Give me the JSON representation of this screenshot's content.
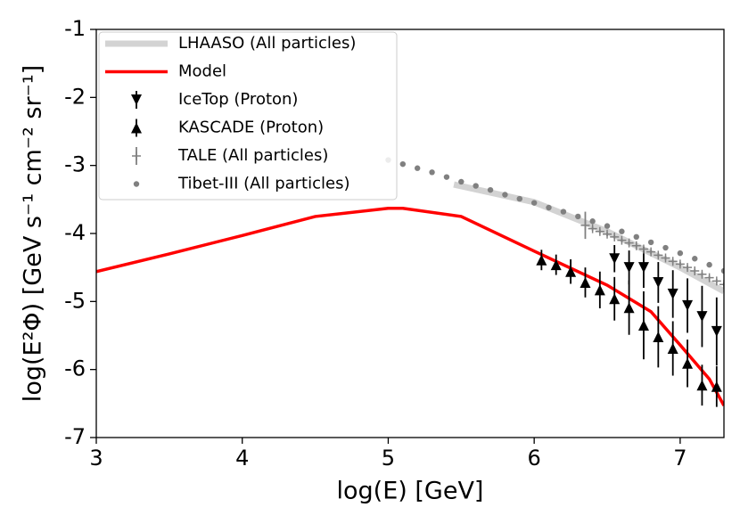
{
  "chart_data": {
    "type": "line",
    "xlabel": "log(E) [GeV]",
    "ylabel": "log(E²Φ) [GeV s⁻¹ cm⁻² sr⁻¹]",
    "xlim": [
      3,
      7.3
    ],
    "ylim": [
      -7,
      -1
    ],
    "xticks": [
      3,
      4,
      5,
      6,
      7
    ],
    "yticks": [
      -1,
      -2,
      -3,
      -4,
      -5,
      -6,
      -7
    ],
    "legend": "upper left",
    "series": [
      {
        "name": "LHAASO (All particles)",
        "color": "#d3d3d3",
        "marker": "line",
        "width": 7,
        "x": [
          5.45,
          6.0,
          6.5,
          7.0,
          7.3
        ],
        "values": [
          -3.28,
          -3.54,
          -3.97,
          -4.5,
          -4.85
        ]
      },
      {
        "name": "Model",
        "color": "#ff0000",
        "marker": "line",
        "width": 3.5,
        "x": [
          3,
          3.5,
          4,
          4.5,
          5,
          5.1,
          5.5,
          6,
          6.5,
          6.8,
          7,
          7.2,
          7.3
        ],
        "values": [
          -4.56,
          -4.3,
          -4.03,
          -3.75,
          -3.63,
          -3.63,
          -3.75,
          -4.26,
          -4.76,
          -5.15,
          -5.64,
          -6.14,
          -6.53
        ]
      },
      {
        "name": "IceTop (Proton)",
        "color": "#000000",
        "marker": "v",
        "x": [
          6.55,
          6.65,
          6.75,
          6.85,
          6.95,
          7.05,
          7.15,
          7.25
        ],
        "values": [
          -4.37,
          -4.5,
          -4.5,
          -4.72,
          -4.89,
          -5.06,
          -5.22,
          -5.44
        ],
        "errors": [
          0.2,
          0.25,
          0.3,
          0.3,
          0.35,
          0.4,
          0.45,
          0.5
        ]
      },
      {
        "name": "KASCADE (Proton)",
        "color": "#000000",
        "marker": "^",
        "x": [
          6.05,
          6.15,
          6.25,
          6.35,
          6.45,
          6.55,
          6.65,
          6.75,
          6.85,
          6.95,
          7.05,
          7.15,
          7.25
        ],
        "values": [
          -4.39,
          -4.46,
          -4.56,
          -4.72,
          -4.83,
          -4.96,
          -5.09,
          -5.35,
          -5.52,
          -5.69,
          -5.91,
          -6.23,
          -6.25
        ],
        "errors": [
          0.15,
          0.15,
          0.18,
          0.22,
          0.27,
          0.32,
          0.4,
          0.5,
          0.45,
          0.4,
          0.35,
          0.3,
          0.3
        ]
      },
      {
        "name": "TALE (All particles)",
        "color": "#808080",
        "marker": "+",
        "x": [
          6.35,
          6.4,
          6.45,
          6.5,
          6.55,
          6.6,
          6.65,
          6.7,
          6.75,
          6.8,
          6.85,
          6.9,
          6.95,
          7.0,
          7.05,
          7.1,
          7.15,
          7.2,
          7.25,
          7.3
        ],
        "values": [
          -3.88,
          -3.93,
          -3.97,
          -4.01,
          -4.05,
          -4.1,
          -4.14,
          -4.18,
          -4.23,
          -4.27,
          -4.32,
          -4.36,
          -4.41,
          -4.45,
          -4.5,
          -4.55,
          -4.6,
          -4.65,
          -4.7,
          -4.75
        ],
        "errors": [
          0.2,
          0.03,
          0.03,
          0.03,
          0.03,
          0.03,
          0.03,
          0.03,
          0.03,
          0.03,
          0.03,
          0.03,
          0.03,
          0.03,
          0.03,
          0.03,
          0.03,
          0.03,
          0.03,
          0.03
        ]
      },
      {
        "name": "Tibet-III (All particles)",
        "color": "#808080",
        "marker": "o",
        "x": [
          5.0,
          5.1,
          5.2,
          5.3,
          5.4,
          5.5,
          5.6,
          5.7,
          5.8,
          5.9,
          6.0,
          6.1,
          6.2,
          6.3,
          6.4,
          6.5,
          6.6,
          6.7,
          6.8,
          6.9,
          7.0,
          7.1,
          7.2,
          7.3
        ],
        "values": [
          -2.92,
          -2.98,
          -3.04,
          -3.1,
          -3.17,
          -3.24,
          -3.3,
          -3.36,
          -3.43,
          -3.49,
          -3.55,
          -3.62,
          -3.68,
          -3.75,
          -3.82,
          -3.89,
          -3.97,
          -4.05,
          -4.13,
          -4.21,
          -4.29,
          -4.37,
          -4.46,
          -4.55
        ]
      }
    ]
  }
}
